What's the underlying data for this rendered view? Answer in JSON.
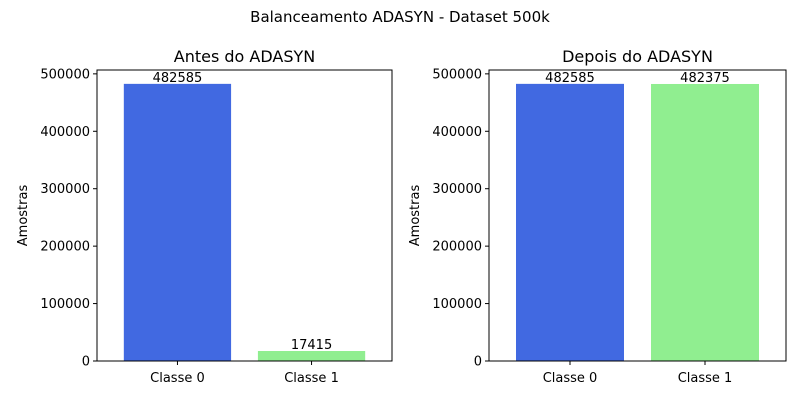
{
  "figure": {
    "suptitle": "Balanceamento ADASYN - Dataset 500k"
  },
  "chart_data": [
    {
      "type": "bar",
      "title": "Antes do ADASYN",
      "xlabel": "",
      "ylabel": "Amostras",
      "categories": [
        "Classe 0",
        "Classe 1"
      ],
      "values": [
        482585,
        17415
      ],
      "data_labels": [
        "482585",
        "17415"
      ],
      "colors": [
        "#4169e1",
        "#90ee90"
      ],
      "ylim": [
        0,
        506714
      ],
      "yticks": [
        0,
        100000,
        200000,
        300000,
        400000,
        500000
      ],
      "ytick_labels": [
        "0",
        "100000",
        "200000",
        "300000",
        "400000",
        "500000"
      ],
      "grid": false,
      "legend": "none"
    },
    {
      "type": "bar",
      "title": "Depois do ADASYN",
      "xlabel": "",
      "ylabel": "Amostras",
      "categories": [
        "Classe 0",
        "Classe 1"
      ],
      "values": [
        482585,
        482375
      ],
      "data_labels": [
        "482585",
        "482375"
      ],
      "colors": [
        "#4169e1",
        "#90ee90"
      ],
      "ylim": [
        0,
        506714
      ],
      "yticks": [
        0,
        100000,
        200000,
        300000,
        400000,
        500000
      ],
      "ytick_labels": [
        "0",
        "100000",
        "200000",
        "300000",
        "400000",
        "500000"
      ],
      "grid": false,
      "legend": "none"
    }
  ]
}
